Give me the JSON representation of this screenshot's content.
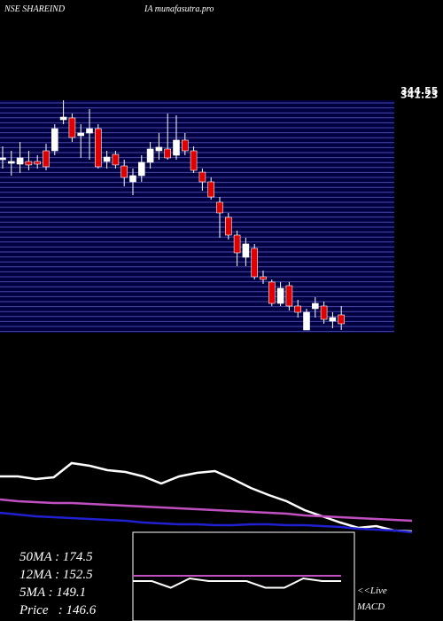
{
  "chart_data": [
    {
      "type": "candlestick",
      "title": [
        "NSE SHAREIND",
        "IA munafasutra.pro"
      ],
      "open": [
        286.8,
        283.8,
        283.1,
        285.3,
        285.3,
        294.2,
        294.2,
        320.1,
        321.6,
        306.8,
        309,
        312.7,
        285.3,
        291.2,
        281.6,
        268.3,
        273.5,
        284.6,
        294.2,
        295.7,
        290.5,
        303.1,
        294.2,
        276.4,
        268.3,
        251.3,
        238.7,
        223.9,
        205.4,
        212.8,
        189.1,
        184.7,
        166.9,
        181.7,
        164.7,
        144.7,
        162.5,
        164.7,
        152.1,
        157.3
      ],
      "high": [
        297.9,
        294.2,
        301.6,
        294.2,
        290.5,
        300.1,
        316.4,
        336.4,
        325.3,
        316.4,
        329,
        316.4,
        294.2,
        294.2,
        286.8,
        279.4,
        290.5,
        301.6,
        309,
        325.3,
        323.8,
        309,
        297.9,
        279.4,
        272,
        255.7,
        242.4,
        227.6,
        221.7,
        216.5,
        194.3,
        186.9,
        184.7,
        184.7,
        169.9,
        162.5,
        172.1,
        168.4,
        159.5,
        164.7
      ],
      "low": [
        279.4,
        273.5,
        275.7,
        277.9,
        279.4,
        277.9,
        290.5,
        316.4,
        301.6,
        288.3,
        286.8,
        279.4,
        279.4,
        279.4,
        264.6,
        257.2,
        268.3,
        279.4,
        286.8,
        286.8,
        286.8,
        290.5,
        275.7,
        260.9,
        253.5,
        221.7,
        220.2,
        198,
        198,
        186.9,
        183.2,
        164.7,
        164.7,
        161,
        155.1,
        144.7,
        155.1,
        149.9,
        146.2,
        144.7
      ],
      "close": [
        288.3,
        285.3,
        288.3,
        282.4,
        283.1,
        280.9,
        312.7,
        322.3,
        305.3,
        309,
        312.7,
        280.9,
        289,
        282.4,
        272,
        273.5,
        284.6,
        295.7,
        297.2,
        288.3,
        303.1,
        294.2,
        277.9,
        268.3,
        255.7,
        242.4,
        223.9,
        209.1,
        216.5,
        189.1,
        186.9,
        166.9,
        179.5,
        164.7,
        159.5,
        159.5,
        166.9,
        153.6,
        155.1,
        149.9
      ],
      "up_color": "#ffffff",
      "down_color": "#e00000",
      "ylim": [
        144.7,
        346
      ],
      "yticks": [
        344.55,
        341.23
      ]
    },
    {
      "type": "line",
      "x": [
        0,
        20,
        40,
        60,
        80,
        100,
        120,
        140,
        160,
        180,
        200,
        220,
        240,
        260,
        280,
        300,
        320,
        340,
        360,
        380,
        400,
        420,
        440,
        460
      ],
      "ylim": [
        0,
        100
      ],
      "series": [
        {
          "color": "#ffffff",
          "values": [
            63,
            63,
            60,
            62,
            78,
            75,
            70,
            68,
            63,
            55,
            63,
            67,
            69,
            60,
            50,
            42,
            35,
            25,
            18,
            11,
            5,
            7,
            2,
            1
          ]
        },
        {
          "color": "#c050c0",
          "values": [
            37,
            35,
            34,
            33,
            33,
            32,
            31,
            30,
            29,
            28,
            27,
            26,
            25,
            24,
            23,
            22,
            21,
            19,
            18,
            17,
            16,
            15,
            14,
            13
          ]
        },
        {
          "color": "#2020d0",
          "values": [
            22,
            20,
            18,
            17,
            16,
            15,
            14,
            13,
            11,
            10,
            9,
            9,
            8,
            8,
            9,
            9,
            8,
            8,
            7,
            6,
            4,
            3,
            2,
            0
          ]
        }
      ],
      "annotations": [
        "50MA : 174.5",
        "12MA : 152.5",
        "5MA : 149.1",
        "Price   : 146.6"
      ]
    },
    {
      "type": "line",
      "x": [
        0,
        1,
        2,
        3,
        4,
        5,
        6,
        7,
        8,
        9,
        10,
        11
      ],
      "ylim": [
        -10,
        10
      ],
      "series": [
        {
          "color": "#c050c0",
          "values": [
            4,
            4,
            4,
            4,
            4,
            4,
            4,
            4,
            4,
            4,
            4,
            4
          ]
        },
        {
          "color": "#ffffff",
          "values": [
            0,
            0,
            -5,
            2,
            0,
            0,
            0,
            -5,
            -5,
            2,
            0,
            0
          ]
        }
      ],
      "label": [
        "<<Live",
        "MACD"
      ]
    }
  ]
}
